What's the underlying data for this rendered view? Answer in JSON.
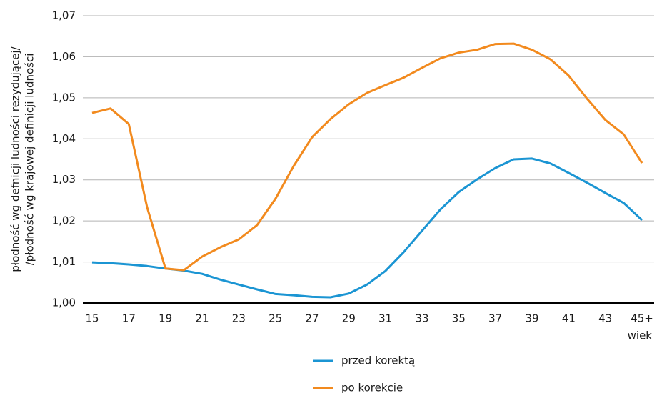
{
  "chart_data": {
    "type": "line",
    "x_label": "wiek",
    "y_label": [
      "płodność wg defnicji ludności rezydującej/",
      "/płodność wg krajowej definicji ludności"
    ],
    "categories": [
      "15",
      null,
      "17",
      null,
      "19",
      null,
      "21",
      null,
      "23",
      null,
      "25",
      null,
      "27",
      null,
      "29",
      null,
      "31",
      null,
      "33",
      null,
      "35",
      null,
      "37",
      null,
      "39",
      null,
      "41",
      null,
      "43",
      null,
      "45+"
    ],
    "series": [
      {
        "name": "przed korektą",
        "color": "#1b95d3",
        "values": [
          1.0099,
          1.0097,
          1.0094,
          1.009,
          1.0084,
          1.0079,
          1.0071,
          1.0057,
          1.0045,
          1.0033,
          1.0022,
          1.0019,
          1.0015,
          1.0014,
          1.0023,
          1.0045,
          1.0078,
          1.0124,
          1.0176,
          1.0228,
          1.027,
          1.0301,
          1.0329,
          1.035,
          1.0352,
          1.034,
          1.0317,
          1.0293,
          1.0268,
          1.0244,
          1.0202
        ]
      },
      {
        "name": "po korekcie",
        "color": "#f28a1e",
        "values": [
          1.0463,
          1.0474,
          1.0436,
          1.0233,
          1.0084,
          1.008,
          1.0113,
          1.0136,
          1.0155,
          1.019,
          1.0254,
          1.0334,
          1.0404,
          1.0448,
          1.0484,
          1.0512,
          1.0531,
          1.0549,
          1.0573,
          1.0596,
          1.061,
          1.0617,
          1.0631,
          1.0632,
          1.0617,
          1.0594,
          1.0554,
          1.0498,
          1.0446,
          1.0411,
          1.0341
        ]
      }
    ],
    "ylim": [
      1.0,
      1.07
    ],
    "yticks": [
      {
        "value": 1.0,
        "label": "1,00"
      },
      {
        "value": 1.01,
        "label": "1,01"
      },
      {
        "value": 1.02,
        "label": "1,02"
      },
      {
        "value": 1.03,
        "label": "1,03"
      },
      {
        "value": 1.04,
        "label": "1,04"
      },
      {
        "value": 1.05,
        "label": "1,05"
      },
      {
        "value": 1.06,
        "label": "1,06"
      },
      {
        "value": 1.07,
        "label": "1,07"
      }
    ],
    "grid": true
  }
}
